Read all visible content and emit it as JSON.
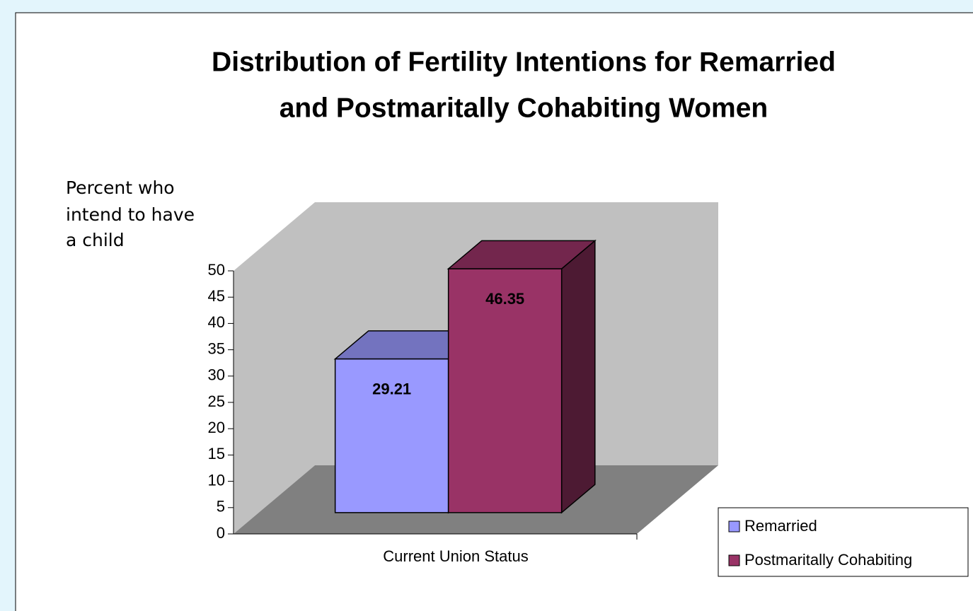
{
  "chart_data": {
    "type": "bar3d",
    "title": [
      "Distribution of Fertility Intentions for Remarried",
      "and Postmaritally Cohabiting Women"
    ],
    "y_label": [
      "Percent who",
      "intend to have",
      "a child"
    ],
    "categories": [
      "Current Union Status"
    ],
    "series": [
      {
        "name": "Remarried",
        "color": "#9999ff",
        "values": [
          29.21
        ],
        "value_labels": [
          "29.21"
        ]
      },
      {
        "name": "Postmaritally Cohabiting",
        "color": "#993366",
        "values": [
          46.35
        ],
        "value_labels": [
          "46.35"
        ]
      }
    ],
    "ylim": [
      0,
      50
    ],
    "yticks": [
      0,
      5,
      10,
      15,
      20,
      25,
      30,
      35,
      40,
      45,
      50
    ],
    "legend": "bottom-right"
  }
}
